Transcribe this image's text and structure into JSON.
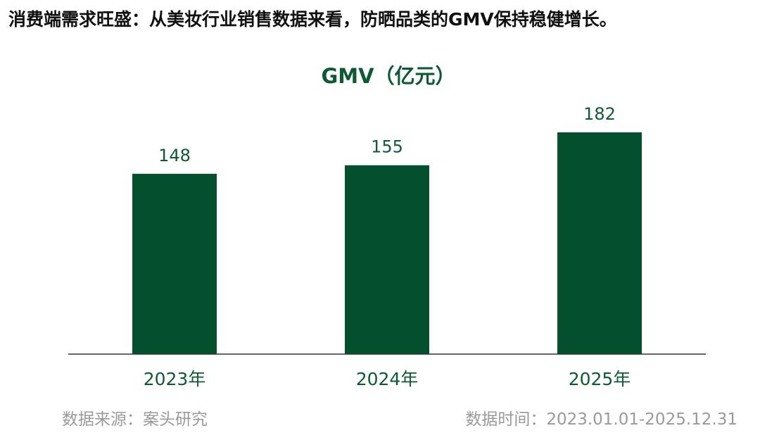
{
  "headline": "消费端需求旺盛：从美妆行业销售数据来看，防晒品类的GMV保持稳健增长。",
  "colors": {
    "bar": "#04502E",
    "title": "#0E5A35",
    "axis": "#333333",
    "footer": "#9A9A9A"
  },
  "chart_data": {
    "type": "bar",
    "title": "GMV（亿元）",
    "xlabel": "",
    "ylabel": "",
    "categories": [
      "2023年",
      "2024年",
      "2025年"
    ],
    "values": [
      148,
      155,
      182
    ],
    "ylim": [
      0,
      200
    ],
    "grid": false,
    "legend": "none",
    "data_labels": true
  },
  "footer": {
    "source": "数据来源：案头研究",
    "period": "数据时间：2023.01.01-2025.12.31"
  }
}
